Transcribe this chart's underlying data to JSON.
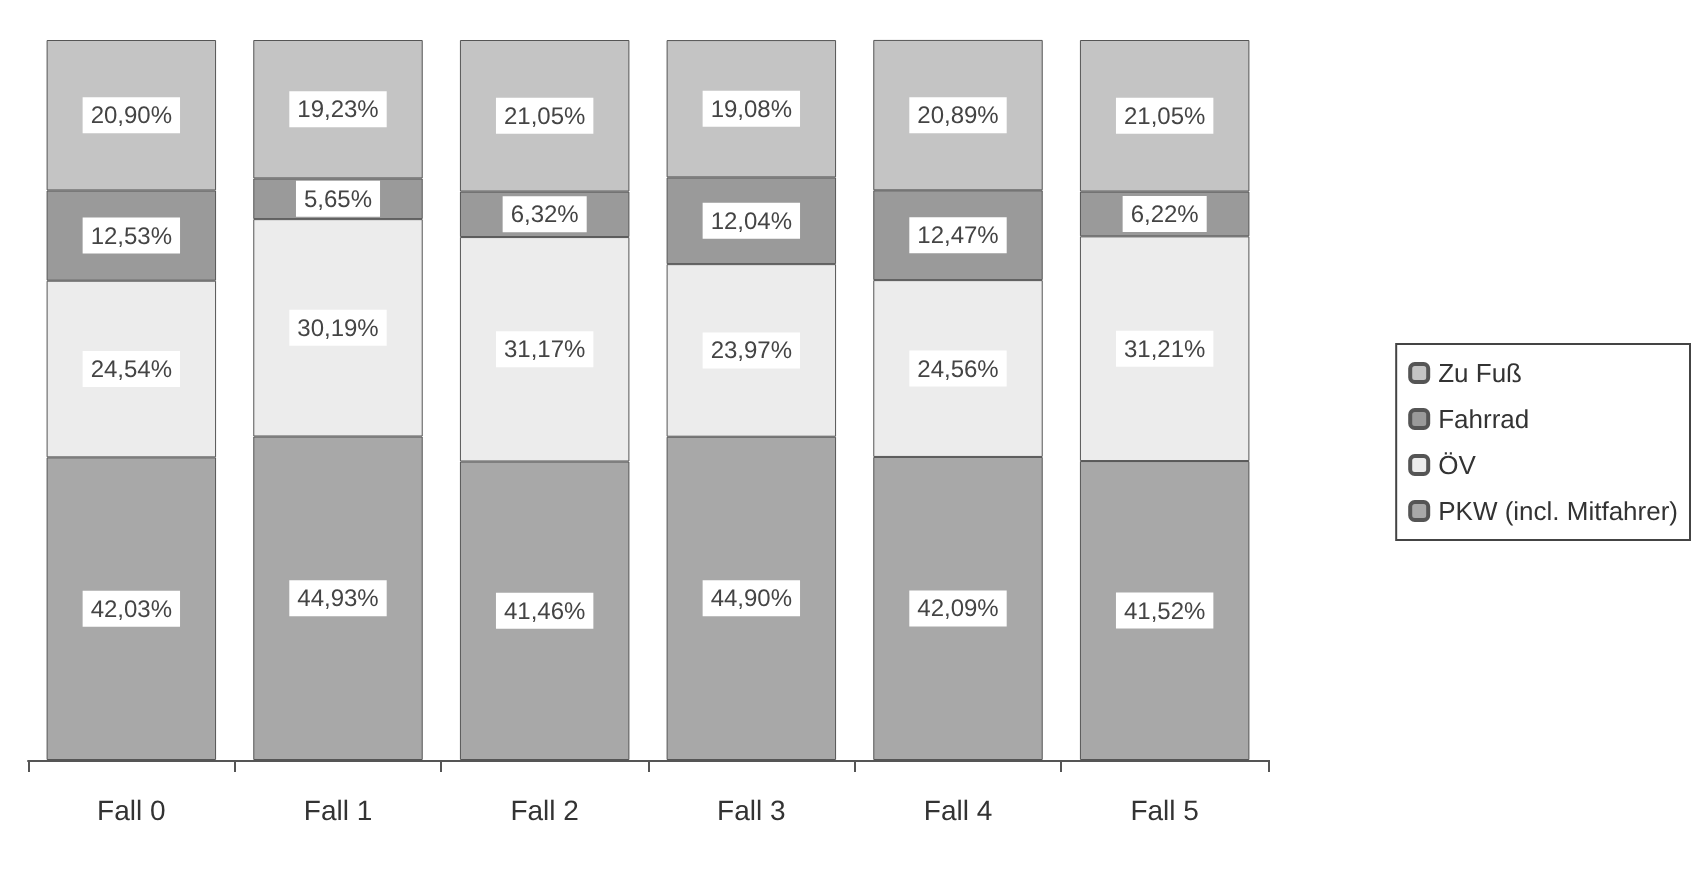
{
  "chart_data": {
    "type": "bar",
    "stacked": true,
    "categories": [
      "Fall 0",
      "Fall 1",
      "Fall 2",
      "Fall 3",
      "Fall 4",
      "Fall 5"
    ],
    "ylim": [
      0,
      100
    ],
    "tick_labels": "x",
    "grid": false,
    "legend": "right",
    "series": [
      {
        "name": "PKW (incl. Mitfahrer)",
        "color": "#a8a8a8",
        "values": [
          42.03,
          44.93,
          41.46,
          44.9,
          42.09,
          41.52
        ],
        "value_labels": [
          "42,03%",
          "44,93%",
          "41,46%",
          "44,90%",
          "42,09%",
          "41,52%"
        ]
      },
      {
        "name": "ÖV",
        "color": "#ececec",
        "values": [
          24.54,
          30.19,
          31.17,
          23.97,
          24.56,
          31.21
        ],
        "value_labels": [
          "24,54%",
          "30,19%",
          "31,17%",
          "23,97%",
          "24,56%",
          "31,21%"
        ]
      },
      {
        "name": "Fahrrad",
        "color": "#9a9a9a",
        "values": [
          12.53,
          5.65,
          6.32,
          12.04,
          12.47,
          6.22
        ],
        "value_labels": [
          "12,53%",
          "5,65%",
          "6,32%",
          "12,04%",
          "12,47%",
          "6,22%"
        ]
      },
      {
        "name": "Zu Fuß",
        "color": "#c4c4c4",
        "values": [
          20.9,
          19.23,
          21.05,
          19.08,
          20.89,
          21.05
        ],
        "value_labels": [
          "20,90%",
          "19,23%",
          "21,05%",
          "19,08%",
          "20,89%",
          "21,05%"
        ]
      }
    ]
  }
}
